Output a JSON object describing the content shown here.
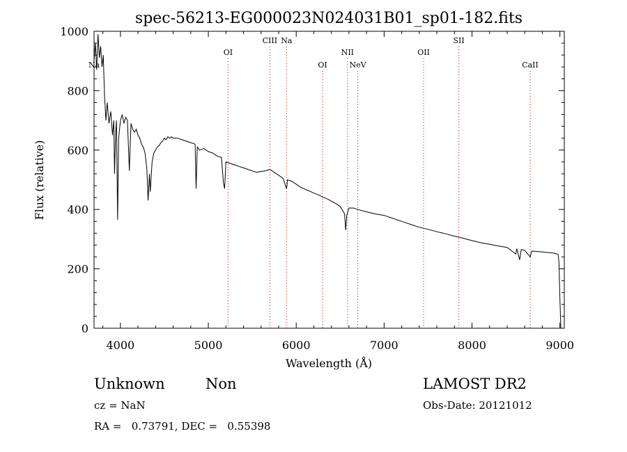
{
  "chart_data": {
    "type": "line",
    "title": "spec-56213-EG000023N024031B01_sp01-182.fits",
    "xlabel": "Wavelength (Å)",
    "ylabel": "Flux (relative)",
    "xlim": [
      3700,
      9050
    ],
    "ylim": [
      0,
      1000
    ],
    "x_ticks": [
      4000,
      5000,
      6000,
      7000,
      8000,
      9000
    ],
    "y_ticks": [
      0,
      200,
      400,
      600,
      800,
      1000
    ],
    "grid": false,
    "series": [
      {
        "color": "#000000",
        "points": [
          [
            3700,
            900
          ],
          [
            3715,
            960
          ],
          [
            3730,
            870
          ],
          [
            3745,
            990
          ],
          [
            3760,
            910
          ],
          [
            3775,
            950
          ],
          [
            3790,
            880
          ],
          [
            3805,
            920
          ],
          [
            3820,
            780
          ],
          [
            3835,
            700
          ],
          [
            3850,
            760
          ],
          [
            3870,
            690
          ],
          [
            3890,
            730
          ],
          [
            3910,
            650
          ],
          [
            3925,
            700
          ],
          [
            3933,
            520
          ],
          [
            3945,
            650
          ],
          [
            3955,
            700
          ],
          [
            3968,
            365
          ],
          [
            3980,
            640
          ],
          [
            4000,
            700
          ],
          [
            4020,
            720
          ],
          [
            4040,
            690
          ],
          [
            4060,
            710
          ],
          [
            4080,
            700
          ],
          [
            4102,
            530
          ],
          [
            4120,
            690
          ],
          [
            4140,
            670
          ],
          [
            4160,
            660
          ],
          [
            4180,
            670
          ],
          [
            4200,
            650
          ],
          [
            4220,
            640
          ],
          [
            4240,
            620
          ],
          [
            4260,
            610
          ],
          [
            4280,
            590
          ],
          [
            4300,
            540
          ],
          [
            4315,
            430
          ],
          [
            4330,
            520
          ],
          [
            4340,
            460
          ],
          [
            4360,
            560
          ],
          [
            4380,
            590
          ],
          [
            4400,
            600
          ],
          [
            4420,
            610
          ],
          [
            4440,
            615
          ],
          [
            4460,
            625
          ],
          [
            4480,
            630
          ],
          [
            4500,
            640
          ],
          [
            4520,
            635
          ],
          [
            4540,
            645
          ],
          [
            4560,
            640
          ],
          [
            4580,
            645
          ],
          [
            4600,
            640
          ],
          [
            4650,
            640
          ],
          [
            4700,
            635
          ],
          [
            4750,
            630
          ],
          [
            4800,
            625
          ],
          [
            4850,
            620
          ],
          [
            4861,
            470
          ],
          [
            4875,
            610
          ],
          [
            4900,
            600
          ],
          [
            4950,
            605
          ],
          [
            5000,
            595
          ],
          [
            5050,
            590
          ],
          [
            5100,
            580
          ],
          [
            5150,
            575
          ],
          [
            5172,
            490
          ],
          [
            5185,
            470
          ],
          [
            5200,
            560
          ],
          [
            5250,
            555
          ],
          [
            5300,
            550
          ],
          [
            5350,
            545
          ],
          [
            5400,
            540
          ],
          [
            5450,
            535
          ],
          [
            5500,
            530
          ],
          [
            5550,
            525
          ],
          [
            5600,
            528
          ],
          [
            5650,
            530
          ],
          [
            5700,
            535
          ],
          [
            5750,
            525
          ],
          [
            5800,
            515
          ],
          [
            5850,
            505
          ],
          [
            5890,
            470
          ],
          [
            5895,
            480
          ],
          [
            5900,
            500
          ],
          [
            5950,
            495
          ],
          [
            6000,
            485
          ],
          [
            6050,
            475
          ],
          [
            6100,
            468
          ],
          [
            6150,
            462
          ],
          [
            6200,
            455
          ],
          [
            6250,
            450
          ],
          [
            6300,
            442
          ],
          [
            6350,
            436
          ],
          [
            6400,
            428
          ],
          [
            6450,
            420
          ],
          [
            6500,
            410
          ],
          [
            6530,
            395
          ],
          [
            6550,
            385
          ],
          [
            6563,
            330
          ],
          [
            6575,
            380
          ],
          [
            6600,
            405
          ],
          [
            6650,
            405
          ],
          [
            6700,
            400
          ],
          [
            6800,
            392
          ],
          [
            6900,
            385
          ],
          [
            7000,
            380
          ],
          [
            7100,
            370
          ],
          [
            7200,
            360
          ],
          [
            7300,
            350
          ],
          [
            7400,
            340
          ],
          [
            7500,
            333
          ],
          [
            7600,
            325
          ],
          [
            7700,
            318
          ],
          [
            7800,
            310
          ],
          [
            7900,
            303
          ],
          [
            8000,
            295
          ],
          [
            8100,
            288
          ],
          [
            8200,
            283
          ],
          [
            8300,
            277
          ],
          [
            8400,
            272
          ],
          [
            8498,
            250
          ],
          [
            8510,
            268
          ],
          [
            8542,
            230
          ],
          [
            8560,
            265
          ],
          [
            8600,
            262
          ],
          [
            8662,
            240
          ],
          [
            8680,
            260
          ],
          [
            8750,
            258
          ],
          [
            8800,
            257
          ],
          [
            8850,
            255
          ],
          [
            8900,
            254
          ],
          [
            8950,
            252
          ],
          [
            8980,
            248
          ],
          [
            8990,
            220
          ],
          [
            9000,
            100
          ],
          [
            9010,
            0
          ]
        ]
      }
    ],
    "line_markers": [
      {
        "label": "Na",
        "x": 3700,
        "row": 3
      },
      {
        "label": "OI",
        "x": 5225,
        "row": 2
      },
      {
        "label": "CIII",
        "x": 5700,
        "row": 1
      },
      {
        "label": "Na",
        "x": 5890,
        "row": 1
      },
      {
        "label": "OI",
        "x": 6300,
        "row": 3
      },
      {
        "label": "NII",
        "x": 6584,
        "row": 2
      },
      {
        "label": "NeV",
        "x": 6700,
        "row": 3
      },
      {
        "label": "OII",
        "x": 7450,
        "row": 2
      },
      {
        "label": "SII",
        "x": 7850,
        "row": 1
      },
      {
        "label": "CaII",
        "x": 8662,
        "row": 3
      }
    ],
    "marker_color": "#cc0000"
  },
  "footer": {
    "class_label": "Unknown",
    "subclass_label": "Non",
    "cz": "cz = NaN",
    "coords": "RA =   0.73791, DEC =   0.55398",
    "survey": "LAMOST DR2",
    "obs_date": "Obs-Date: 20121012"
  }
}
